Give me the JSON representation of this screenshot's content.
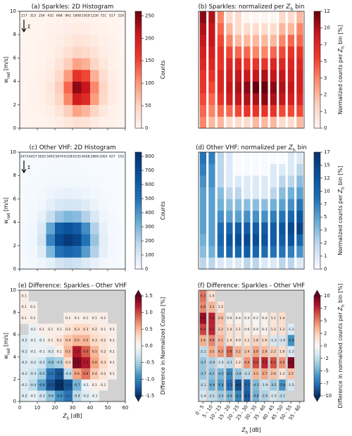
{
  "chart_data": [
    {
      "type": "heatmap",
      "title": [
        "(a) Sparkles: 2D Histogram"
      ],
      "cmap": "reds",
      "norm": "linear",
      "clim": [
        0,
        260
      ],
      "cticks": [
        0,
        50,
        100,
        150,
        200,
        250
      ],
      "colorbar_label": [
        "Counts"
      ],
      "ylabel": [
        "w",
        {
          "text": "red",
          "style": "sub"
        },
        " [m/s]"
      ],
      "xlim": [
        0,
        60
      ],
      "xticks": [
        0,
        10,
        20,
        30,
        40,
        50,
        60
      ],
      "show_xtick_labels": false,
      "ylim": [
        0,
        10
      ],
      "yticks": [
        0,
        2,
        4,
        6,
        8,
        10
      ],
      "sum_label": "Σ",
      "top_counts": [
        217,
        315,
        256,
        432,
        668,
        961,
        1608,
        1929,
        1230,
        721,
        517,
        220
      ],
      "cells": [
        [
          1,
          2,
          3,
          5,
          10,
          20,
          30,
          25,
          15,
          8,
          4,
          2
        ],
        [
          1,
          3,
          5,
          10,
          25,
          55,
          90,
          75,
          45,
          20,
          8,
          3
        ],
        [
          2,
          4,
          8,
          18,
          45,
          110,
          200,
          180,
          95,
          40,
          14,
          5
        ],
        [
          2,
          4,
          8,
          20,
          55,
          130,
          240,
          210,
          110,
          45,
          15,
          5
        ],
        [
          1,
          3,
          6,
          15,
          40,
          95,
          170,
          150,
          80,
          35,
          12,
          4
        ],
        [
          1,
          2,
          5,
          10,
          25,
          55,
          90,
          80,
          45,
          20,
          8,
          3
        ],
        [
          1,
          2,
          4,
          8,
          15,
          30,
          45,
          40,
          25,
          12,
          6,
          2
        ],
        [
          0,
          1,
          3,
          6,
          10,
          18,
          25,
          22,
          14,
          8,
          4,
          1
        ],
        [
          0,
          1,
          2,
          4,
          6,
          10,
          14,
          12,
          8,
          5,
          2,
          1
        ],
        [
          0,
          0,
          0,
          2,
          3,
          5,
          6,
          5,
          3,
          2,
          1,
          0
        ]
      ]
    },
    {
      "type": "heatmap",
      "title": [
        "(b) Sparkles: normalized per ",
        {
          "text": "Z",
          "style": "italic"
        },
        {
          "text": "h",
          "style": "sub"
        },
        " bin"
      ],
      "cmap": "reds",
      "norm": "piecewise",
      "cticks": [
        0,
        1,
        2,
        3,
        5,
        7,
        10,
        12
      ],
      "colorbar_label": [
        "Normalized counts per ",
        {
          "text": "Z",
          "style": "italic"
        },
        {
          "text": "h",
          "style": "sub"
        },
        " bin [%]"
      ],
      "ylim": [
        0,
        10
      ],
      "cells": [
        [
          3,
          2,
          2,
          1,
          1,
          1,
          2,
          2,
          2,
          1,
          1,
          2
        ],
        [
          4,
          3,
          4,
          4,
          5,
          6,
          6,
          6,
          6,
          5,
          5,
          5
        ],
        [
          5,
          4,
          6,
          8,
          9,
          10,
          10,
          11,
          10,
          9,
          8,
          7
        ],
        [
          6,
          5,
          7,
          9,
          10,
          11,
          12,
          12,
          11,
          10,
          9,
          8
        ],
        [
          6,
          6,
          7,
          8,
          9,
          9,
          9,
          10,
          9,
          9,
          8,
          8
        ],
        [
          7,
          7,
          6,
          7,
          7,
          6,
          6,
          6,
          7,
          7,
          7,
          7
        ],
        [
          8,
          8,
          6,
          5,
          4,
          4,
          3,
          3,
          4,
          5,
          6,
          6
        ],
        [
          9,
          9,
          5,
          3,
          2,
          2,
          2,
          2,
          2,
          3,
          4,
          4
        ],
        [
          10,
          9,
          4,
          2,
          1,
          1,
          1,
          1,
          1,
          2,
          2,
          3
        ],
        [
          11,
          10,
          3,
          1,
          1,
          0,
          0,
          0,
          0,
          1,
          1,
          2
        ]
      ]
    },
    {
      "type": "heatmap",
      "title": [
        "(c) Other VHF: 2D Histogram"
      ],
      "cmap": "blues",
      "norm": "linear",
      "clim": [
        0,
        830
      ],
      "cticks": [
        0,
        100,
        200,
        300,
        400,
        500,
        600,
        700,
        800
      ],
      "colorbar_label": [
        "Counts"
      ],
      "ylabel": [
        "w",
        {
          "text": "red",
          "style": "sub"
        },
        " [m/s]"
      ],
      "xlim": [
        0,
        60
      ],
      "xticks": [
        0,
        10,
        20,
        30,
        40,
        50,
        60
      ],
      "show_xtick_labels": false,
      "ylim": [
        0,
        10
      ],
      "yticks": [
        0,
        2,
        4,
        6,
        8,
        10
      ],
      "sum_label": "Σ",
      "top_counts": [
        3473,
        6427,
        3620,
        3493,
        5674,
        6158,
        6155,
        4658,
        2869,
        1003,
        427,
        155
      ],
      "cells": [
        [
          5,
          10,
          30,
          60,
          120,
          150,
          130,
          90,
          50,
          20,
          8,
          2
        ],
        [
          10,
          20,
          80,
          300,
          500,
          560,
          520,
          380,
          200,
          60,
          15,
          4
        ],
        [
          10,
          25,
          120,
          450,
          700,
          780,
          720,
          500,
          250,
          70,
          15,
          4
        ],
        [
          8,
          20,
          90,
          350,
          600,
          650,
          600,
          420,
          200,
          55,
          12,
          3
        ],
        [
          6,
          15,
          50,
          150,
          250,
          300,
          280,
          200,
          100,
          30,
          8,
          2
        ],
        [
          5,
          10,
          25,
          60,
          100,
          120,
          110,
          80,
          40,
          15,
          5,
          1
        ],
        [
          4,
          8,
          15,
          30,
          45,
          50,
          45,
          35,
          20,
          8,
          3,
          1
        ],
        [
          3,
          6,
          10,
          15,
          20,
          20,
          18,
          15,
          10,
          5,
          2,
          1
        ],
        [
          3,
          5,
          7,
          8,
          10,
          10,
          9,
          7,
          5,
          3,
          1,
          0
        ],
        [
          2,
          4,
          5,
          5,
          5,
          5,
          4,
          4,
          3,
          2,
          1,
          0
        ]
      ]
    },
    {
      "type": "heatmap",
      "title": [
        "(d) Other VHF: normalized per ",
        {
          "text": "Z",
          "style": "italic"
        },
        {
          "text": "h",
          "style": "sub"
        },
        " bin"
      ],
      "cmap": "blues",
      "norm": "piecewise",
      "cticks": [
        0,
        1,
        2,
        3,
        5,
        7,
        10,
        12,
        15,
        17
      ],
      "colorbar_label": [
        "Normalized counts per ",
        {
          "text": "Z",
          "style": "italic"
        },
        {
          "text": "h",
          "style": "sub"
        },
        " bin [%]"
      ],
      "ylim": [
        0,
        10
      ],
      "cells": [
        [
          2,
          2,
          1,
          1,
          1,
          2,
          2,
          1,
          1,
          2,
          2,
          1
        ],
        [
          3,
          4,
          8,
          10,
          10,
          11,
          10,
          9,
          8,
          8,
          7,
          6
        ],
        [
          4,
          5,
          10,
          12,
          13,
          14,
          13,
          12,
          11,
          11,
          12,
          10
        ],
        [
          5,
          5,
          9,
          10,
          11,
          11,
          11,
          11,
          11,
          12,
          14,
          15
        ],
        [
          5,
          5,
          6,
          5,
          5,
          6,
          6,
          6,
          7,
          8,
          10,
          12
        ],
        [
          5,
          5,
          4,
          3,
          3,
          3,
          3,
          3,
          4,
          5,
          6,
          8
        ],
        [
          5,
          5,
          3,
          2,
          2,
          1,
          1,
          1,
          2,
          3,
          4,
          5
        ],
        [
          6,
          6,
          2,
          1,
          1,
          1,
          1,
          1,
          1,
          2,
          2,
          3
        ],
        [
          7,
          6,
          2,
          1,
          0,
          0,
          0,
          0,
          1,
          1,
          1,
          2
        ],
        [
          8,
          7,
          2,
          1,
          0,
          0,
          0,
          0,
          0,
          0,
          1,
          1
        ]
      ]
    },
    {
      "type": "heatmap",
      "title": [
        "(e) Difference: Sparkles - Other VHF"
      ],
      "cmap": "rdbu",
      "norm": "linear",
      "clim": [
        -1.5,
        1.5
      ],
      "extend": "both",
      "nan_color": "#d2d2d2",
      "cell_labels": true,
      "cticks": [
        -1.5,
        {
          "value": -1,
          "label": "-1.0"
        },
        -0.5,
        {
          "value": 0,
          "label": "0.0"
        },
        0.5,
        {
          "value": 1,
          "label": "1.0"
        },
        1.5
      ],
      "colorbar_label": [
        "Difference in Normalized Counts [%]"
      ],
      "ylabel": [
        "w",
        {
          "text": "red",
          "style": "sub"
        },
        " [m/s]"
      ],
      "xlabel": [
        {
          "text": "Z",
          "style": "italic"
        },
        {
          "text": "h",
          "style": "sub"
        },
        " [dB]"
      ],
      "xlim": [
        0,
        60
      ],
      "xticks": [
        0,
        10,
        20,
        30,
        40,
        50,
        60
      ],
      "show_xtick_labels": true,
      "ylim": [
        0,
        10
      ],
      "yticks": [
        0,
        2,
        4,
        6,
        8,
        10
      ],
      "cells": [
        [
          -0.2,
          -0.1,
          -0.3,
          -0.6,
          -0.9,
          -1.1,
          -0.4,
          -0.2,
          -0.1,
          null,
          null,
          null
        ],
        [
          -0.2,
          -0.4,
          -0.8,
          -1.3,
          -1.5,
          -1.3,
          -0.7,
          -0.1,
          0.1,
          0.1,
          null,
          null
        ],
        [
          -0.2,
          -0.3,
          -0.5,
          -1.1,
          -1.3,
          -0.4,
          0.6,
          0.8,
          0.4,
          0.2,
          0.1,
          null
        ],
        [
          -0.2,
          -0.2,
          -0.3,
          -0.6,
          -0.5,
          0.3,
          1.4,
          1.2,
          0.6,
          0.3,
          0.1,
          null
        ],
        [
          -0.2,
          -0.1,
          -0.1,
          -0.2,
          0.1,
          0.5,
          1.2,
          0.9,
          0.5,
          0.2,
          0.1,
          null
        ],
        [
          -0.2,
          -0.1,
          -0.1,
          0.1,
          0.2,
          0.4,
          0.5,
          0.5,
          0.3,
          0.2,
          0.1,
          null
        ],
        [
          null,
          -0.1,
          0.1,
          0.1,
          0.1,
          0.2,
          0.3,
          0.3,
          0.2,
          0.1,
          0.1,
          null
        ],
        [
          0.1,
          0.1,
          null,
          null,
          null,
          0.1,
          0.1,
          0.1,
          0.1,
          0.1,
          null,
          null
        ],
        [
          0.1,
          0.1,
          null,
          null,
          null,
          null,
          null,
          null,
          null,
          null,
          null,
          null
        ],
        [
          0.1,
          null,
          null,
          null,
          null,
          null,
          null,
          null,
          null,
          null,
          null,
          null
        ]
      ]
    },
    {
      "type": "heatmap",
      "title": [
        "(f) Difference: Sparkles - Other VHF"
      ],
      "cmap": "rdbu",
      "norm": "piecewise",
      "extend": "both",
      "nan_color": "#d2d2d2",
      "cell_labels": true,
      "cticks": [
        -10,
        -7,
        -5,
        -2,
        0,
        2,
        5,
        7,
        10
      ],
      "colorbar_label": [
        "Difference in normalized counts per ",
        {
          "text": "Z",
          "style": "italic"
        },
        {
          "text": "h",
          "style": "sub"
        },
        " bin [%]"
      ],
      "xlabel": [
        {
          "text": "Z",
          "style": "italic"
        },
        {
          "text": "h",
          "style": "sub"
        },
        " [dB]"
      ],
      "categories": [
        "0 - 5",
        "5 - 10",
        "10 - 15",
        "15 - 20",
        "20 - 25",
        "25 - 30",
        "30 - 35",
        "35 - 40",
        "40 - 45",
        "45 - 50",
        "50 - 55",
        "55 - 60"
      ],
      "ylim": [
        0,
        10
      ],
      "cells": [
        [
          -1.4,
          -2.1,
          -3.5,
          -4.6,
          -6.2,
          -8.1,
          -4.8,
          -2.9,
          -1.5,
          -2.1,
          null,
          null
        ],
        [
          -2.1,
          -4.9,
          -5.4,
          -7.2,
          -8.6,
          -7.7,
          -4.3,
          -1.9,
          -3.5,
          -5.8,
          -1.5,
          null
        ],
        [
          -3.7,
          -4.1,
          -4.5,
          -6.1,
          -3.9,
          -2.2,
          3.1,
          3.7,
          2.6,
          1.2,
          2.5,
          null
        ],
        [
          -3.7,
          -2.9,
          -1.5,
          -2.1,
          1.2,
          4.4,
          6.3,
          7.2,
          6.1,
          4.5,
          9.2,
          null
        ],
        [
          -2.1,
          3.5,
          4.3,
          5.6,
          3.2,
          2.4,
          3.9,
          2.9,
          2.2,
          1.6,
          -1.3,
          null
        ],
        [
          3.4,
          4.9,
          3.1,
          1.4,
          0.9,
          1.2,
          1.8,
          1.6,
          -1.3,
          -1.6,
          -5.8,
          null
        ],
        [
          6.4,
          7.1,
          2.2,
          1.4,
          1.1,
          0.6,
          0.4,
          0.3,
          1.2,
          1.3,
          -1.2,
          null
        ],
        [
          8.4,
          7.3,
          2.6,
          0.6,
          0.4,
          0.3,
          0.2,
          0.4,
          1.1,
          1.4,
          null,
          null
        ],
        [
          4.8,
          3.1,
          1.2,
          null,
          null,
          null,
          null,
          null,
          null,
          null,
          null,
          null
        ],
        [
          5.3,
          1.4,
          null,
          null,
          null,
          null,
          null,
          null,
          null,
          null,
          null,
          null
        ]
      ]
    }
  ]
}
